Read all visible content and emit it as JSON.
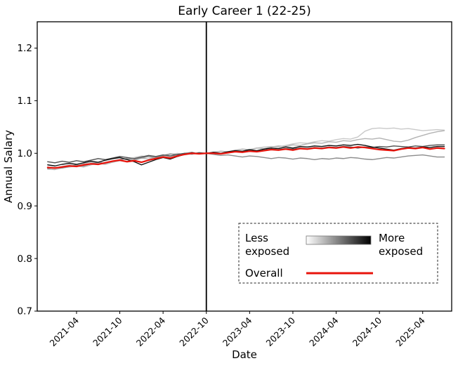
{
  "chart_data": {
    "type": "line",
    "title": "Early Career 1 (22-25)",
    "xlabel": "Date",
    "ylabel": "Annual Salary",
    "ylim": [
      0.7,
      1.25
    ],
    "yticks": [
      "0.7",
      "0.8",
      "0.9",
      "1.0",
      "1.1",
      "1.2"
    ],
    "ytick_values": [
      0.7,
      0.8,
      0.9,
      1.0,
      1.1,
      1.2
    ],
    "grid": "off",
    "legend_position": "lower-right-inside",
    "xtick_labels": [
      "2021-04",
      "2021-10",
      "2022-04",
      "2022-10",
      "2023-04",
      "2023-10",
      "2024-04",
      "2024-10",
      "2025-04"
    ],
    "xtick_month_index": [
      4,
      10,
      16,
      22,
      28,
      34,
      40,
      46,
      52
    ],
    "x": [
      "2020-12",
      "2021-01",
      "2021-02",
      "2021-03",
      "2021-04",
      "2021-05",
      "2021-06",
      "2021-07",
      "2021-08",
      "2021-09",
      "2021-10",
      "2021-11",
      "2021-12",
      "2022-01",
      "2022-02",
      "2022-03",
      "2022-04",
      "2022-05",
      "2022-06",
      "2022-07",
      "2022-08",
      "2022-09",
      "2022-10",
      "2022-11",
      "2022-12",
      "2023-01",
      "2023-02",
      "2023-03",
      "2023-04",
      "2023-05",
      "2023-06",
      "2023-07",
      "2023-08",
      "2023-09",
      "2023-10",
      "2023-11",
      "2023-12",
      "2024-01",
      "2024-02",
      "2024-03",
      "2024-04",
      "2024-05",
      "2024-06",
      "2024-07",
      "2024-08",
      "2024-09",
      "2024-10",
      "2024-11",
      "2024-12",
      "2025-01",
      "2025-02",
      "2025-03",
      "2025-04",
      "2025-05",
      "2025-06",
      "2025-07"
    ],
    "vline_at": "2022-10",
    "vline_month_index": 22,
    "vline_color": "#000000",
    "series": [
      {
        "name": "exposure-quintile-1-least-exposed",
        "color": "#c9c9c9",
        "width": 1.4,
        "values": [
          0.974,
          0.972,
          0.975,
          0.978,
          0.977,
          0.98,
          0.983,
          0.982,
          0.986,
          0.989,
          0.991,
          0.988,
          0.992,
          0.995,
          0.993,
          0.991,
          0.995,
          0.998,
          1.0,
          0.997,
          0.999,
          1.002,
          1.0,
          1.002,
          1.004,
          1.003,
          1.006,
          1.008,
          1.007,
          1.01,
          1.012,
          1.013,
          1.012,
          1.015,
          1.018,
          1.02,
          1.019,
          1.022,
          1.024,
          1.023,
          1.026,
          1.028,
          1.027,
          1.031,
          1.042,
          1.047,
          1.048,
          1.047,
          1.048,
          1.046,
          1.047,
          1.045,
          1.043,
          1.044,
          1.045,
          1.044
        ]
      },
      {
        "name": "exposure-quintile-2",
        "color": "#b3b3b3",
        "width": 1.4,
        "values": [
          0.97,
          0.969,
          0.972,
          0.974,
          0.976,
          0.974,
          0.978,
          0.981,
          0.979,
          0.983,
          0.986,
          0.984,
          0.988,
          0.991,
          0.989,
          0.993,
          0.996,
          0.994,
          0.997,
          1.0,
          0.998,
          1.001,
          1.0,
          1.002,
          1.004,
          1.003,
          1.006,
          1.008,
          1.007,
          1.01,
          1.009,
          1.012,
          1.014,
          1.013,
          1.016,
          1.015,
          1.018,
          1.02,
          1.019,
          1.022,
          1.021,
          1.024,
          1.023,
          1.026,
          1.028,
          1.027,
          1.029,
          1.026,
          1.023,
          1.022,
          1.025,
          1.03,
          1.034,
          1.038,
          1.041,
          1.043
        ]
      },
      {
        "name": "exposure-quintile-3",
        "color": "#8c8c8c",
        "width": 1.4,
        "values": [
          0.971,
          0.973,
          0.972,
          0.975,
          0.978,
          0.976,
          0.98,
          0.983,
          0.981,
          0.985,
          0.988,
          0.99,
          0.987,
          0.991,
          0.994,
          0.992,
          0.996,
          0.999,
          0.997,
          1.0,
          1.002,
          0.999,
          1.0,
          0.998,
          0.996,
          0.997,
          0.995,
          0.993,
          0.995,
          0.994,
          0.992,
          0.99,
          0.992,
          0.991,
          0.989,
          0.991,
          0.99,
          0.988,
          0.99,
          0.989,
          0.991,
          0.99,
          0.992,
          0.991,
          0.989,
          0.988,
          0.99,
          0.992,
          0.991,
          0.993,
          0.995,
          0.996,
          0.997,
          0.995,
          0.993,
          0.993
        ]
      },
      {
        "name": "exposure-quintile-4",
        "color": "#4f4f4f",
        "width": 1.4,
        "values": [
          0.984,
          0.982,
          0.985,
          0.983,
          0.986,
          0.984,
          0.987,
          0.99,
          0.988,
          0.991,
          0.994,
          0.992,
          0.99,
          0.993,
          0.996,
          0.994,
          0.997,
          0.995,
          0.998,
          1.0,
          0.999,
          1.001,
          1.0,
          1.001,
          0.999,
          1.002,
          1.004,
          1.003,
          1.005,
          1.004,
          1.006,
          1.008,
          1.007,
          1.009,
          1.008,
          1.01,
          1.009,
          1.011,
          1.01,
          1.012,
          1.011,
          1.013,
          1.012,
          1.01,
          1.012,
          1.011,
          1.013,
          1.012,
          1.014,
          1.013,
          1.012,
          1.014,
          1.013,
          1.015,
          1.016,
          1.016
        ]
      },
      {
        "name": "exposure-quintile-5-most-exposed",
        "color": "#0f0f0f",
        "width": 1.4,
        "values": [
          0.978,
          0.976,
          0.979,
          0.981,
          0.979,
          0.982,
          0.985,
          0.983,
          0.987,
          0.99,
          0.992,
          0.988,
          0.984,
          0.978,
          0.983,
          0.988,
          0.992,
          0.989,
          0.994,
          0.998,
          1.001,
          0.999,
          1.0,
          1.002,
          1.0,
          1.003,
          1.005,
          1.004,
          1.007,
          1.005,
          1.008,
          1.01,
          1.009,
          1.012,
          1.01,
          1.013,
          1.012,
          1.014,
          1.013,
          1.015,
          1.014,
          1.016,
          1.015,
          1.017,
          1.015,
          1.012,
          1.01,
          1.008,
          1.006,
          1.009,
          1.011,
          1.01,
          1.012,
          1.011,
          1.013,
          1.013
        ]
      },
      {
        "name": "Overall",
        "color": "#e8140c",
        "width": 2.2,
        "values": [
          0.973,
          0.972,
          0.974,
          0.976,
          0.975,
          0.978,
          0.98,
          0.979,
          0.982,
          0.985,
          0.987,
          0.984,
          0.986,
          0.983,
          0.987,
          0.99,
          0.993,
          0.991,
          0.995,
          0.998,
          1.0,
          0.999,
          1.0,
          1.0,
          0.999,
          1.001,
          1.003,
          1.002,
          1.004,
          1.003,
          1.005,
          1.007,
          1.006,
          1.008,
          1.006,
          1.009,
          1.008,
          1.01,
          1.009,
          1.011,
          1.01,
          1.012,
          1.01,
          1.012,
          1.011,
          1.009,
          1.007,
          1.006,
          1.005,
          1.008,
          1.01,
          1.009,
          1.011,
          1.008,
          1.01,
          1.009
        ]
      }
    ],
    "legend": {
      "less": [
        "Less",
        "exposed"
      ],
      "more": [
        "More",
        "exposed"
      ],
      "overall": "Overall",
      "gradient": [
        "#ffffff",
        "#000000"
      ],
      "overall_color": "#e8140c"
    }
  }
}
